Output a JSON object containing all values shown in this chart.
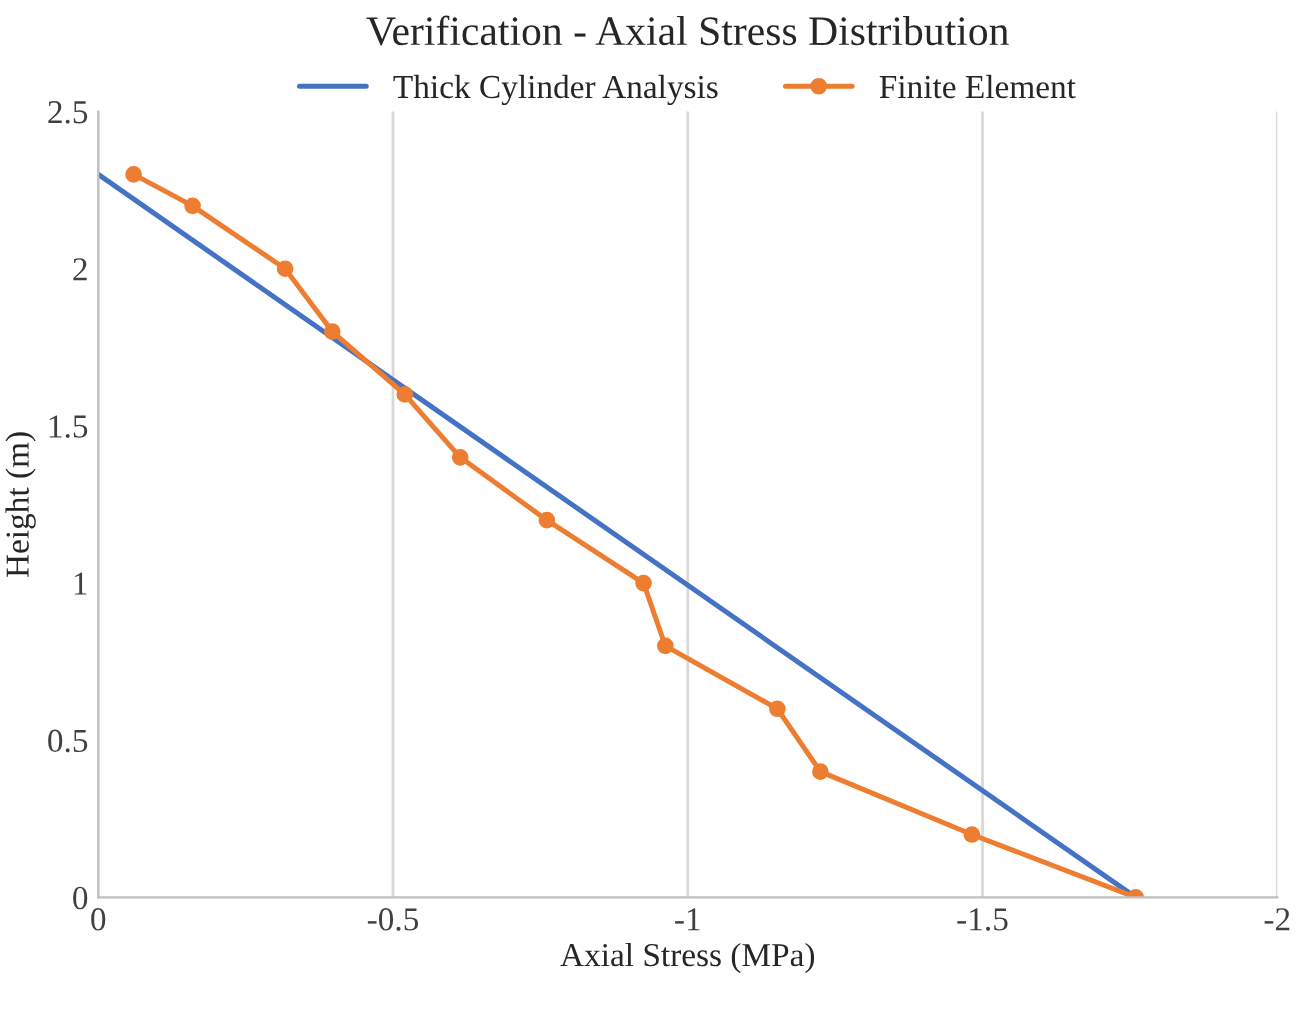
{
  "chart_data": {
    "type": "line",
    "title": "Verification - Axial Stress Distribution",
    "xlabel": "Axial Stress (MPa)",
    "ylabel": "Height (m)",
    "xlim": [
      0,
      -2
    ],
    "xticks": [
      0,
      -0.5,
      -1,
      -1.5,
      -2
    ],
    "ylim": [
      0,
      2.5
    ],
    "yticks": [
      0,
      0.5,
      1,
      1.5,
      2,
      2.5
    ],
    "grid": "x",
    "legend": "top",
    "series": [
      {
        "name": "Thick Cylinder Analysis",
        "color": "#4472c4",
        "marker": "none",
        "x": [
          0,
          -1.76
        ],
        "values": [
          2.3,
          0
        ]
      },
      {
        "name": "Finite Element",
        "color": "#ed7d31",
        "marker": "circle",
        "x": [
          -0.06,
          -0.16,
          -0.317,
          -0.397,
          -0.52,
          -0.614,
          -0.761,
          -0.925,
          -0.962,
          -1.152,
          -1.225,
          -1.482,
          -1.76
        ],
        "values": [
          2.3,
          2.2,
          2.0,
          1.8,
          1.6,
          1.4,
          1.2,
          1.0,
          0.8,
          0.6,
          0.4,
          0.2,
          0.0
        ]
      }
    ]
  }
}
